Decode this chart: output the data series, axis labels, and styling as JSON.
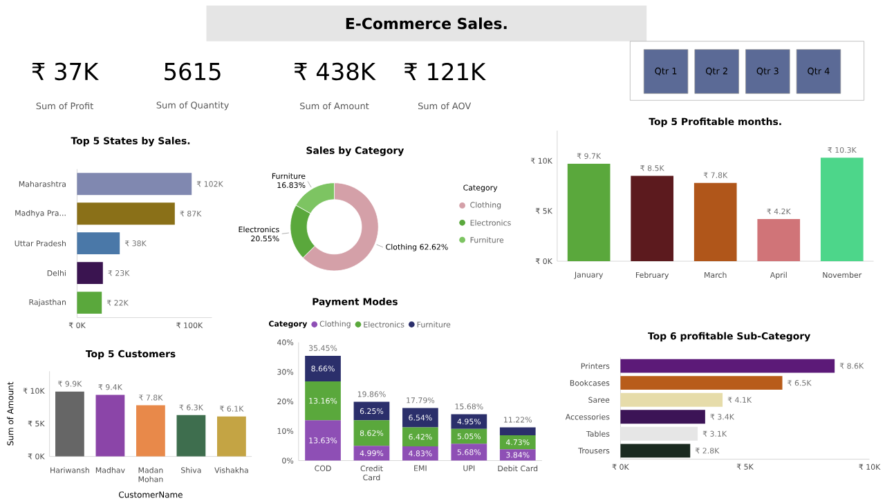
{
  "chart_data": [
    {
      "type": "other",
      "title": "E-Commerce Sales.",
      "annotations": [
        "₹ 37K",
        "Sum of Profit",
        "5615",
        "Sum of Quantity",
        "₹ 438K",
        "Sum of Amount",
        "₹ 121K",
        "Sum of AOV"
      ]
    },
    {
      "type": "other",
      "annotations": [
        "Qtr 1",
        "Qtr 2",
        "Qtr 3",
        "Qtr 4"
      ]
    },
    {
      "type": "bar",
      "orientation": "horizontal",
      "title": "Top 5 States by Sales.",
      "categories": [
        "Maharashtra",
        "Madhya Pra...",
        "Uttar Pradesh",
        "Delhi",
        "Rajasthan"
      ],
      "values": [
        102,
        87,
        38,
        23,
        22
      ],
      "colors": [
        "#8088b0",
        "#8a7018",
        "#4a78a8",
        "#3a1450",
        "#5aa83c"
      ],
      "value_labels": [
        "₹ 102K",
        "₹ 87K",
        "₹ 38K",
        "₹ 23K",
        "₹ 22K"
      ],
      "xlim": [
        0,
        120
      ],
      "xticks": [
        {
          "value": 0,
          "label": "₹ 0K"
        },
        {
          "value": 100,
          "label": "₹ 100K"
        }
      ]
    },
    {
      "type": "donut",
      "title": "Sales by Category",
      "legend_title": "Category",
      "legend": "right",
      "categories": [
        "Clothing",
        "Electronics",
        "Furniture"
      ],
      "values": [
        62.62,
        20.55,
        16.83
      ],
      "colors": [
        "#d4a0a8",
        "#5aa83c",
        "#7dc462"
      ],
      "value_labels": [
        "62.62%",
        "20.55%",
        "16.83%"
      ]
    },
    {
      "type": "bar",
      "title": "Top 5 Profitable months.",
      "categories": [
        "January",
        "February",
        "March",
        "April",
        "November"
      ],
      "values": [
        9.7,
        8.5,
        7.8,
        4.2,
        10.3
      ],
      "colors": [
        "#5aa83c",
        "#5c1a1e",
        "#b0561a",
        "#d07478",
        "#4dd68a"
      ],
      "value_labels": [
        "₹ 9.7K",
        "₹ 8.5K",
        "₹ 7.8K",
        "₹ 4.2K",
        "₹ 10.3K"
      ],
      "ylim": [
        0,
        13
      ],
      "yticks": [
        {
          "value": 0,
          "label": "₹ 0K"
        },
        {
          "value": 5,
          "label": "₹ 5K"
        },
        {
          "value": 10,
          "label": "₹ 10K"
        }
      ]
    },
    {
      "type": "bar",
      "title": "Top 5 Customers",
      "xlabel": "CustomerName",
      "ylabel": "Sum of Amount",
      "categories": [
        "Hariwansh",
        "Madhav",
        "Madan Mohan",
        "Shiva",
        "Vishakha"
      ],
      "values": [
        9.9,
        9.4,
        7.8,
        6.3,
        6.1
      ],
      "colors": [
        "#666666",
        "#8b45a8",
        "#e8894a",
        "#3e6e4e",
        "#c4a444"
      ],
      "value_labels": [
        "₹ 9.9K",
        "₹ 9.4K",
        "₹ 7.8K",
        "₹ 6.3K",
        "₹ 6.1K"
      ],
      "ylim": [
        0,
        13
      ],
      "yticks": [
        {
          "value": 0,
          "label": "₹ 0K"
        },
        {
          "value": 5,
          "label": "₹ 5K"
        },
        {
          "value": 10,
          "label": "₹ 10K"
        }
      ]
    },
    {
      "type": "bar",
      "stacked": true,
      "title": "Payment Modes",
      "legend_title": "Category",
      "legend": "top",
      "categories": [
        "COD",
        "Credit Card",
        "EMI",
        "UPI",
        "Debit Card"
      ],
      "series": [
        {
          "name": "Clothing",
          "color": "#8e4fb5",
          "values": [
            13.63,
            4.99,
            4.83,
            5.68,
            3.84
          ],
          "value_labels": [
            "13.63%",
            "4.99%",
            "4.83%",
            "5.68%",
            "3.84%"
          ]
        },
        {
          "name": "Electronics",
          "color": "#5aa83c",
          "values": [
            13.16,
            8.62,
            6.42,
            5.05,
            4.73
          ],
          "value_labels": [
            "13.16%",
            "8.62%",
            "6.42%",
            "5.05%",
            "4.73%"
          ]
        },
        {
          "name": "Furniture",
          "color": "#2b2f6b",
          "values": [
            8.66,
            6.25,
            6.54,
            4.95,
            2.65
          ],
          "value_labels": [
            "8.66%",
            "6.25%",
            "6.54%",
            "4.95%",
            null
          ]
        }
      ],
      "totals": [
        "35.45%",
        "19.86%",
        "17.79%",
        "15.68%",
        "11.22%"
      ],
      "ylim": [
        0,
        40
      ],
      "yticks": [
        {
          "value": 0,
          "label": "0%"
        },
        {
          "value": 10,
          "label": "10%"
        },
        {
          "value": 20,
          "label": "20%"
        },
        {
          "value": 30,
          "label": "30%"
        },
        {
          "value": 40,
          "label": "40%"
        }
      ]
    },
    {
      "type": "bar",
      "orientation": "horizontal",
      "title": "Top 6 profitable Sub-Category",
      "categories": [
        "Printers",
        "Bookcases",
        "Saree",
        "Accessories",
        "Tables",
        "Trousers"
      ],
      "values": [
        8.6,
        6.5,
        4.1,
        3.4,
        3.1,
        2.8
      ],
      "colors": [
        "#5c1a78",
        "#b85c1a",
        "#e6dcaa",
        "#3c1456",
        "#e6e6e6",
        "#1a2a20"
      ],
      "value_labels": [
        "₹ 8.6K",
        "₹ 6.5K",
        "₹ 4.1K",
        "₹ 3.4K",
        "₹ 3.1K",
        "₹ 2.8K"
      ],
      "xlim": [
        0,
        10
      ],
      "xticks": [
        {
          "value": 0,
          "label": "₹ 0K"
        },
        {
          "value": 5,
          "label": "₹ 5K"
        },
        {
          "value": 10,
          "label": "₹ 10K"
        }
      ]
    }
  ]
}
